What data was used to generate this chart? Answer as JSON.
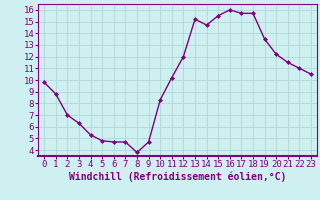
{
  "x": [
    0,
    1,
    2,
    3,
    4,
    5,
    6,
    7,
    8,
    9,
    10,
    11,
    12,
    13,
    14,
    15,
    16,
    17,
    18,
    19,
    20,
    21,
    22,
    23
  ],
  "y": [
    9.8,
    8.8,
    7.0,
    6.3,
    5.3,
    4.8,
    4.7,
    4.7,
    3.8,
    4.7,
    8.3,
    10.2,
    12.0,
    15.2,
    14.7,
    15.5,
    16.0,
    15.7,
    15.7,
    13.5,
    12.2,
    11.5,
    11.0,
    10.5
  ],
  "line_color": "#800080",
  "marker": "D",
  "marker_size": 2.0,
  "bg_color": "#cff0f0",
  "grid_color": "#b0d8d8",
  "xlabel": "Windchill (Refroidissement éolien,°C)",
  "xlabel_color": "#800080",
  "tick_color": "#800080",
  "ylim": [
    3.5,
    16.5
  ],
  "xlim": [
    -0.5,
    23.5
  ],
  "yticks": [
    4,
    5,
    6,
    7,
    8,
    9,
    10,
    11,
    12,
    13,
    14,
    15,
    16
  ],
  "xticks": [
    0,
    1,
    2,
    3,
    4,
    5,
    6,
    7,
    8,
    9,
    10,
    11,
    12,
    13,
    14,
    15,
    16,
    17,
    18,
    19,
    20,
    21,
    22,
    23
  ],
  "spine_color": "#800080",
  "xlabel_fontsize": 7,
  "tick_fontsize": 6.5,
  "linewidth": 1.0
}
